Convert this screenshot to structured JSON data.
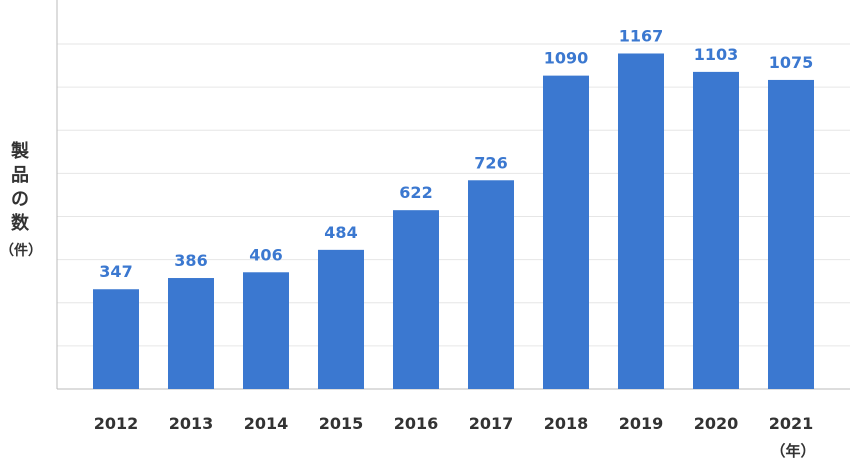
{
  "chart_data": {
    "type": "bar",
    "categories": [
      "2012",
      "2013",
      "2014",
      "2015",
      "2016",
      "2017",
      "2018",
      "2019",
      "2020",
      "2021"
    ],
    "series": [
      {
        "values": [
          347,
          386,
          406,
          484,
          622,
          726,
          1090,
          1167,
          1103,
          1075
        ]
      }
    ],
    "ylabel": "製品の数",
    "ylabel_unit": "（件）",
    "xlabel_unit": "（年）",
    "ylim": [
      0,
      1200
    ],
    "y_gridline_step": 150,
    "grid": true,
    "legend": "none",
    "colors": {
      "bar": "#3b78d0",
      "data_label": "#3b78d0",
      "grid": "#e6e6e6",
      "axis": "#bbbbbb",
      "tick_label": "#333333"
    }
  }
}
